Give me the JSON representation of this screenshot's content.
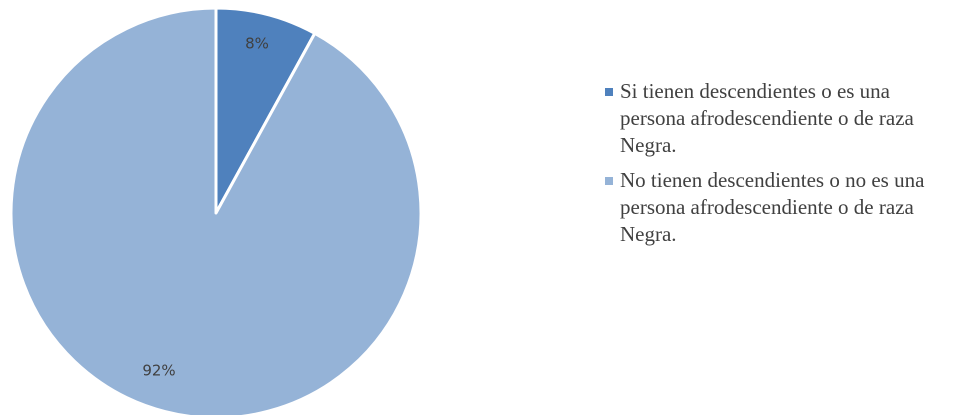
{
  "chart_data": {
    "type": "pie",
    "series": [
      {
        "values": [
          8,
          92
        ],
        "labels": [
          "8%",
          "92%"
        ],
        "colors": [
          "#4f81bd",
          "#95b3d7"
        ]
      }
    ],
    "legend": {
      "placement": "right",
      "entries": [
        "Si tienen descendientes o es una persona afrodescendiente o de raza Negra.",
        "No tienen descendientes o no es una persona afrodescendiente o de raza Negra."
      ]
    },
    "start_angle_deg": 0,
    "direction": "clockwise"
  }
}
